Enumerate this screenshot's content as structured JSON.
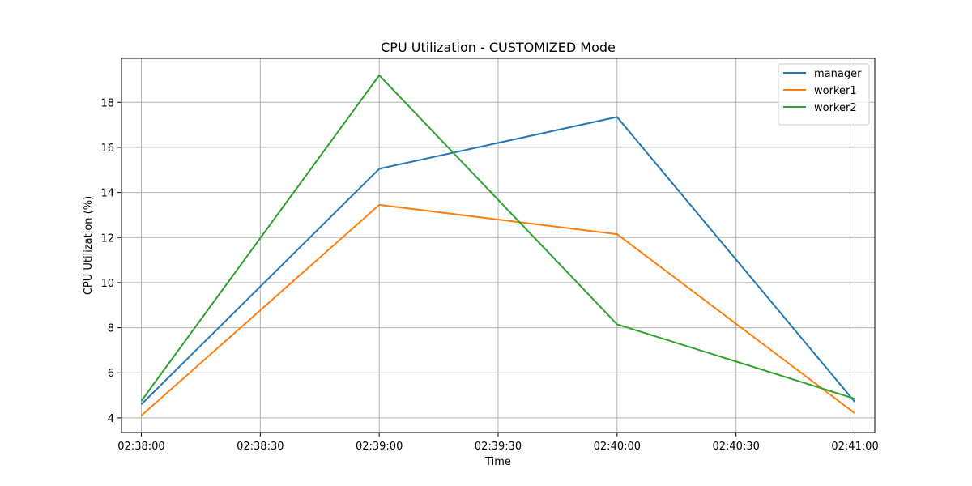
{
  "chart_data": {
    "type": "line",
    "title": "CPU Utilization - CUSTOMIZED Mode",
    "xlabel": "Time",
    "ylabel": "CPU Utilization (%)",
    "x": [
      "02:38:00",
      "02:39:00",
      "02:40:00",
      "02:41:00"
    ],
    "x_ticks": [
      "02:38:00",
      "02:38:30",
      "02:39:00",
      "02:39:30",
      "02:40:00",
      "02:40:30",
      "02:41:00"
    ],
    "xlim": [
      "02:37:55",
      "02:41:05"
    ],
    "y_ticks": [
      4,
      6,
      8,
      10,
      12,
      14,
      16,
      18
    ],
    "ylim": [
      3.35,
      19.95
    ],
    "grid": true,
    "legend_position": "top-right",
    "series": [
      {
        "name": "manager",
        "color": "#1f77b4",
        "values": [
          4.6,
          15.05,
          17.35,
          4.7
        ]
      },
      {
        "name": "worker1",
        "color": "#ff7f0e",
        "values": [
          4.1,
          13.45,
          12.15,
          4.2
        ]
      },
      {
        "name": "worker2",
        "color": "#2ca02c",
        "values": [
          4.75,
          19.2,
          8.15,
          4.85
        ]
      }
    ]
  }
}
